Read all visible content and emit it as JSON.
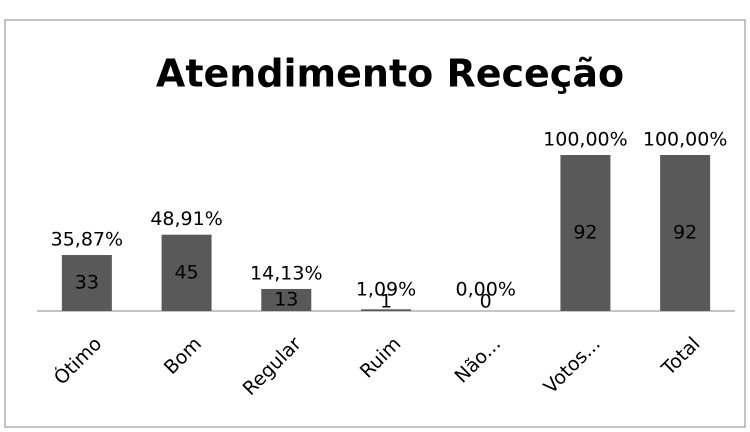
{
  "chart_data": {
    "type": "bar",
    "title": "Atendimento Receção",
    "categories": [
      "Ótimo",
      "Bom",
      "Regular",
      "Ruim",
      "Não...",
      "Votos...",
      "Total"
    ],
    "values": [
      33,
      45,
      13,
      1,
      0,
      92,
      92
    ],
    "percent_labels": [
      "35,87%",
      "48,91%",
      "14,13%",
      "1,09%",
      "0,00%",
      "100,00%",
      "100,00%"
    ],
    "color": "#595959"
  }
}
